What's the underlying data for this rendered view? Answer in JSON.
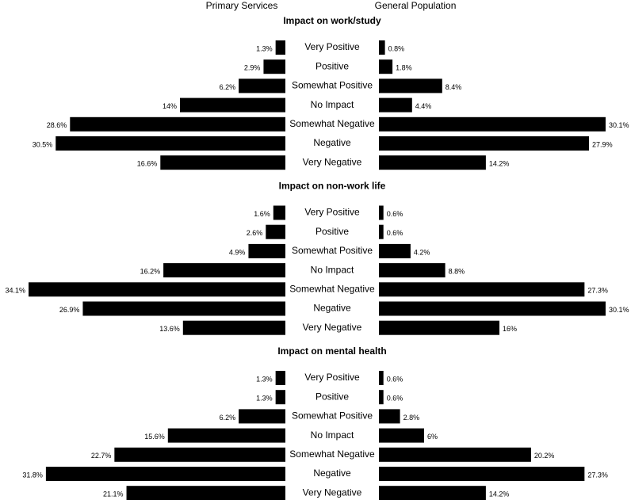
{
  "chart_data": [
    {
      "type": "butterfly",
      "title": "Impact on work/study",
      "categories": [
        "Very Positive",
        "Positive",
        "Somewhat Positive",
        "No Impact",
        "Somewhat Negative",
        "Negative",
        "Very Negative"
      ],
      "series": [
        {
          "name": "Primary Services",
          "color": "#000000",
          "values": [
            1.3,
            2.9,
            6.2,
            14,
            28.6,
            30.5,
            16.6
          ],
          "value_labels": [
            "1.3%",
            "2.9%",
            "6.2%",
            "14%",
            "28.6%",
            "30.5%",
            "16.6%"
          ]
        },
        {
          "name": "General Population",
          "color": "#000000",
          "values": [
            0.8,
            1.8,
            8.4,
            4.4,
            30.1,
            27.9,
            14.2
          ],
          "value_labels": [
            "0.8%",
            "1.8%",
            "8.4%",
            "4.4%",
            "30.1%",
            "27.9%",
            "14.2%"
          ]
        }
      ]
    },
    {
      "type": "butterfly",
      "title": "Impact on non-work life",
      "categories": [
        "Very Positive",
        "Positive",
        "Somewhat Positive",
        "No Impact",
        "Somewhat Negative",
        "Negative",
        "Very Negative"
      ],
      "series": [
        {
          "color": "#000000",
          "values": [
            1.6,
            2.6,
            4.9,
            16.2,
            34.1,
            26.9,
            13.6
          ],
          "value_labels": [
            "1.6%",
            "2.6%",
            "4.9%",
            "16.2%",
            "34.1%",
            "26.9%",
            "13.6%"
          ]
        },
        {
          "color": "#000000",
          "values": [
            0.6,
            0.6,
            4.2,
            8.8,
            27.3,
            30.1,
            16
          ],
          "value_labels": [
            "0.6%",
            "0.6%",
            "4.2%",
            "8.8%",
            "27.3%",
            "30.1%",
            "16%"
          ]
        }
      ]
    },
    {
      "type": "butterfly",
      "title": "Impact on mental health",
      "categories": [
        "Very Positive",
        "Positive",
        "Somewhat Positive",
        "No Impact",
        "Somewhat Negative",
        "Negative",
        "Very Negative"
      ],
      "series": [
        {
          "color": "#000000",
          "values": [
            1.3,
            1.3,
            6.2,
            15.6,
            22.7,
            31.8,
            21.1
          ],
          "value_labels": [
            "1.3%",
            "1.3%",
            "6.2%",
            "15.6%",
            "22.7%",
            "31.8%",
            "21.1%"
          ]
        },
        {
          "color": "#000000",
          "values": [
            0.6,
            0.6,
            2.8,
            6,
            20.2,
            27.3,
            14.2
          ],
          "value_labels": [
            "0.6%",
            "0.6%",
            "2.8%",
            "6%",
            "20.2%",
            "27.3%",
            "14.2%"
          ]
        }
      ]
    }
  ]
}
